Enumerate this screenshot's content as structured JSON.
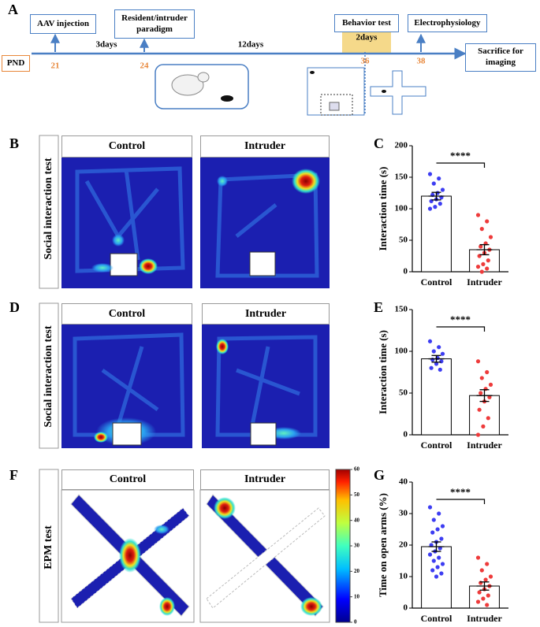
{
  "panel_letters": [
    "A",
    "B",
    "C",
    "D",
    "E",
    "F",
    "G"
  ],
  "timeline": {
    "pnd": "PND",
    "events": [
      "AAV injection",
      "Resident/intruder paradigm",
      "Behavior test",
      "Electrophysiology",
      "Sacrifice for imaging"
    ],
    "days": [
      "21",
      "24",
      "36",
      "38"
    ],
    "intervals": [
      "3days",
      "12days",
      "2days"
    ]
  },
  "heatmaps": {
    "row_labels": [
      "Social interaction test",
      "Social interaction test",
      "EPM test"
    ],
    "titles": [
      [
        "Control",
        "Intruder"
      ],
      [
        "Control",
        "Intruder"
      ],
      [
        "Control",
        "Intruder"
      ]
    ],
    "colorbar": {
      "lim": [
        0,
        60
      ],
      "ticks": [
        0,
        10,
        20,
        30,
        40,
        50,
        60
      ]
    }
  },
  "chart_data": [
    {
      "type": "bar",
      "ylabel": "Interaction time (s)",
      "categories": [
        "Control",
        "Intruder"
      ],
      "values": [
        120,
        35
      ],
      "errors": [
        6,
        8
      ],
      "colors": [
        "#3d3df2",
        "#ee3b3b"
      ],
      "points": [
        [
          155,
          148,
          140,
          130,
          125,
          122,
          118,
          115,
          112,
          108,
          103,
          100
        ],
        [
          90,
          80,
          68,
          55,
          45,
          40,
          35,
          30,
          25,
          18,
          12,
          8,
          5,
          0
        ]
      ],
      "significance": "****",
      "ylim": [
        0,
        200
      ],
      "yticks": [
        0,
        50,
        100,
        150,
        200
      ]
    },
    {
      "type": "bar",
      "ylabel": "Interaction time (s)",
      "categories": [
        "Control",
        "Intruder"
      ],
      "values": [
        91,
        47
      ],
      "errors": [
        4,
        7
      ],
      "colors": [
        "#3d3df2",
        "#ee3b3b"
      ],
      "points": [
        [
          112,
          105,
          100,
          97,
          92,
          90,
          88,
          85,
          80,
          78
        ],
        [
          88,
          75,
          68,
          60,
          55,
          50,
          45,
          40,
          30,
          20,
          10,
          0
        ]
      ],
      "significance": "****",
      "ylim": [
        0,
        150
      ],
      "yticks": [
        0,
        50,
        100,
        150
      ]
    },
    {
      "type": "bar",
      "ylabel": "Time on open arms (%)",
      "categories": [
        "Control",
        "Intruder"
      ],
      "values": [
        19.5,
        7
      ],
      "errors": [
        1.5,
        1.3
      ],
      "colors": [
        "#3d3df2",
        "#ee3b3b"
      ],
      "points": [
        [
          32,
          30,
          28,
          26,
          25,
          24,
          22,
          21,
          20,
          19,
          18,
          17,
          16,
          15,
          14,
          13,
          12,
          11,
          10
        ],
        [
          16,
          14,
          12,
          10,
          9,
          8,
          7,
          6,
          5,
          4,
          3,
          2,
          1
        ]
      ],
      "significance": "****",
      "ylim": [
        0,
        40
      ],
      "yticks": [
        0,
        10,
        20,
        30,
        40
      ]
    }
  ]
}
